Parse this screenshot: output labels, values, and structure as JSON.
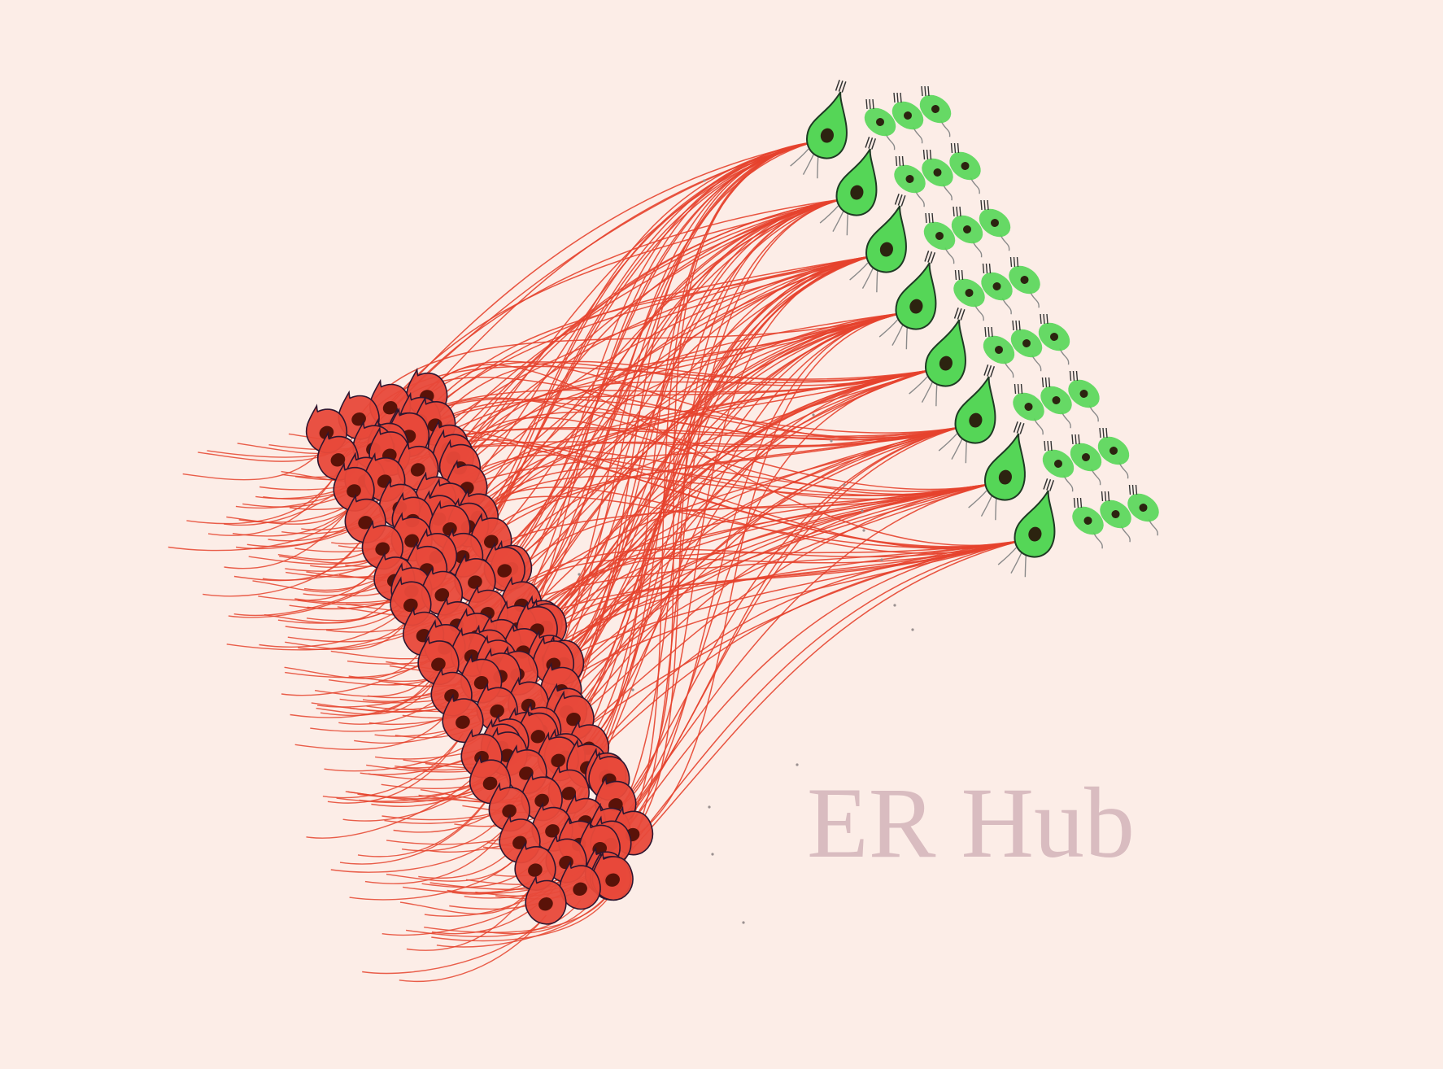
{
  "watermark": {
    "text": "ER Hub"
  },
  "colors": {
    "background": "#fcede7",
    "red_cell_fill": "#e8493a",
    "red_cell_stroke": "#2e1630",
    "red_nucleus": "#5a1208",
    "axon": "#e5432d",
    "green_cell_fill": "#55d657",
    "green_cell_stroke": "#1f3a24",
    "green_nucleus": "#2c2410",
    "cilia": "#333333",
    "watermark": "#d9bcc0"
  },
  "icons": {
    "red_cell": "red-teardrop-cell-icon",
    "green_cell": "green-teardrop-cell-icon",
    "green_small_cell": "green-oval-cell-icon"
  }
}
